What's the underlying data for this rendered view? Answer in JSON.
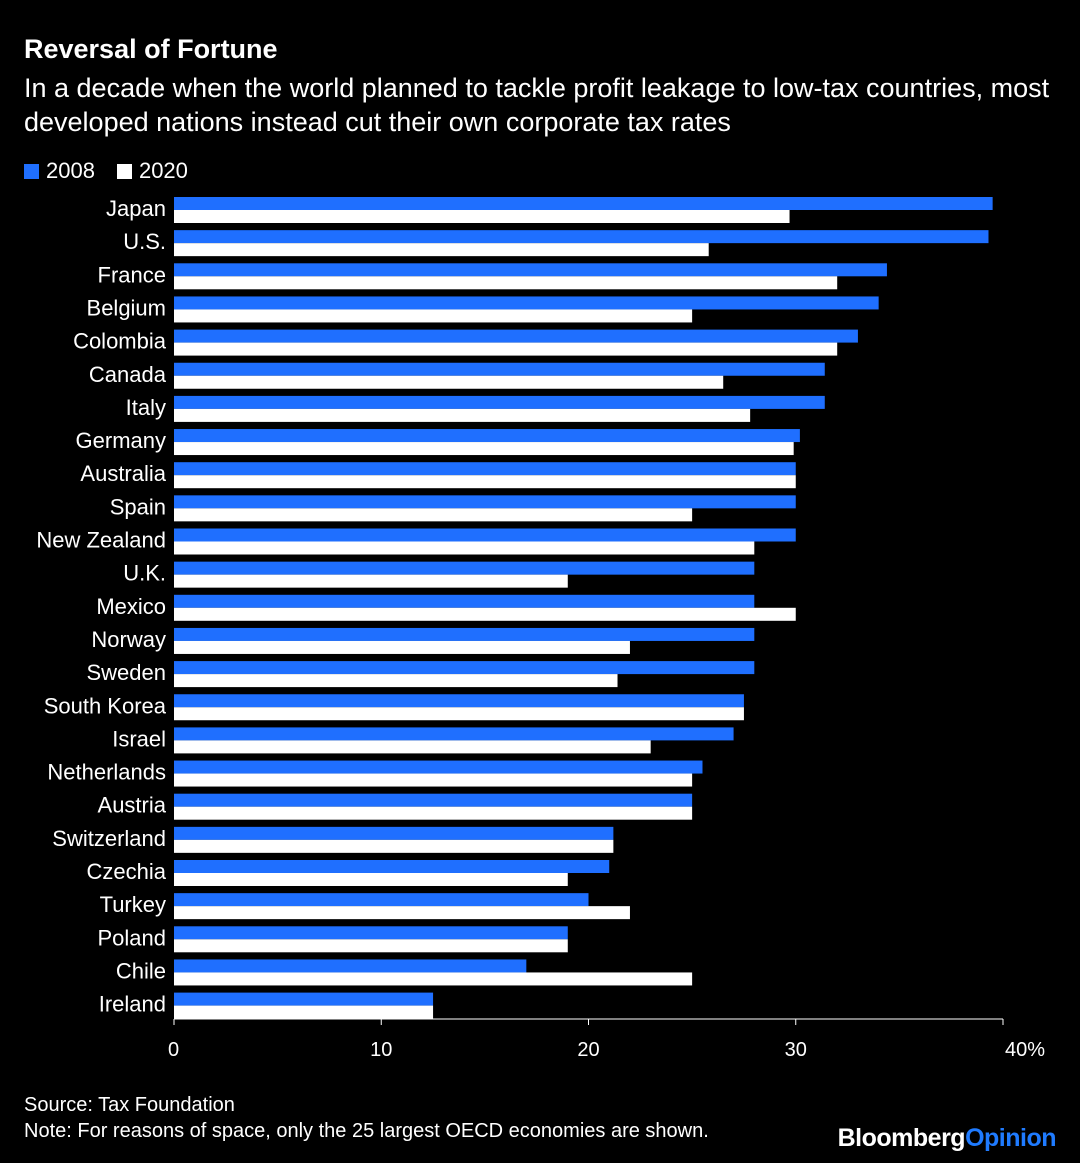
{
  "header": {
    "title": "Reversal of Fortune",
    "subtitle": "In a decade when the world planned to tackle profit leakage to low-tax countries, most developed nations instead cut their own corporate tax rates"
  },
  "legend": [
    {
      "label": "2008",
      "color": "#1f6fff"
    },
    {
      "label": "2020",
      "color": "#ffffff"
    }
  ],
  "footer": {
    "source": "Source: Tax Foundation",
    "note": "Note: For reasons of space, only the 25 largest OECD economies are shown.",
    "brand_part1": "Bloomberg",
    "brand_part2": "Opinion"
  },
  "chart_data": {
    "type": "bar",
    "orientation": "horizontal",
    "categories": [
      "Japan",
      "U.S.",
      "France",
      "Belgium",
      "Colombia",
      "Canada",
      "Italy",
      "Germany",
      "Australia",
      "Spain",
      "New Zealand",
      "U.K.",
      "Mexico",
      "Norway",
      "Sweden",
      "South Korea",
      "Israel",
      "Netherlands",
      "Austria",
      "Switzerland",
      "Czechia",
      "Turkey",
      "Poland",
      "Chile",
      "Ireland"
    ],
    "series": [
      {
        "name": "2008",
        "color": "#1f6fff",
        "values": [
          39.5,
          39.3,
          34.4,
          34.0,
          33.0,
          31.4,
          31.4,
          30.2,
          30.0,
          30.0,
          30.0,
          28.0,
          28.0,
          28.0,
          28.0,
          27.5,
          27.0,
          25.5,
          25.0,
          21.2,
          21.0,
          20.0,
          19.0,
          17.0,
          12.5
        ]
      },
      {
        "name": "2020",
        "color": "#ffffff",
        "values": [
          29.7,
          25.8,
          32.0,
          25.0,
          32.0,
          26.5,
          27.8,
          29.9,
          30.0,
          25.0,
          28.0,
          19.0,
          30.0,
          22.0,
          21.4,
          27.5,
          23.0,
          25.0,
          25.0,
          21.2,
          19.0,
          22.0,
          19.0,
          25.0,
          12.5
        ]
      }
    ],
    "x_ticks": [
      0,
      10,
      20,
      30,
      40
    ],
    "x_tick_labels": [
      "0",
      "10",
      "20",
      "30",
      "40%"
    ],
    "xlim": [
      0,
      40
    ],
    "grid": false,
    "legend_position": "top-left"
  }
}
